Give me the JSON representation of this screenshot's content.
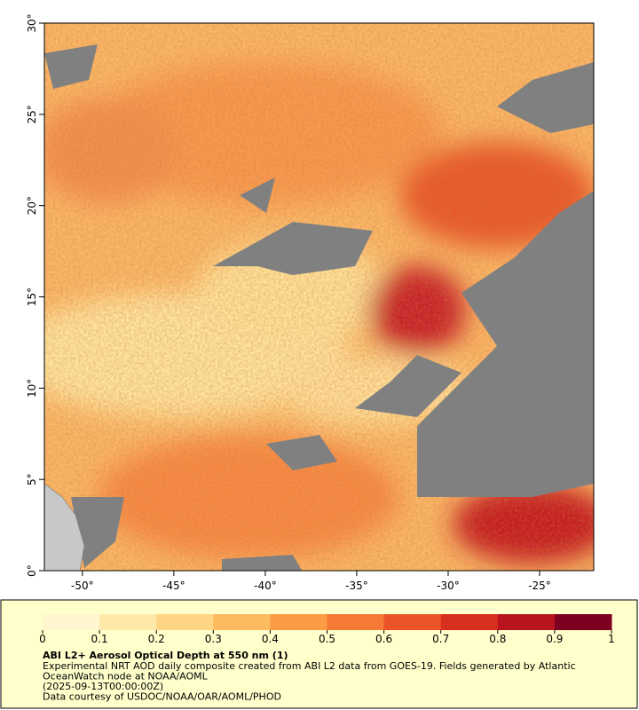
{
  "map": {
    "xlim": [
      -52.08,
      -22.04
    ],
    "ylim": [
      0,
      30
    ],
    "xticks": [
      {
        "value": -50,
        "label": "-50°"
      },
      {
        "value": -45,
        "label": "-45°"
      },
      {
        "value": -40,
        "label": "-40°"
      },
      {
        "value": -35,
        "label": "-35°"
      },
      {
        "value": -30,
        "label": "-30°"
      },
      {
        "value": -25,
        "label": "-25°"
      }
    ],
    "yticks": [
      {
        "value": 0,
        "label": "0°"
      },
      {
        "value": 5,
        "label": "5°"
      },
      {
        "value": 10,
        "label": "10°"
      },
      {
        "value": 15,
        "label": "15°"
      },
      {
        "value": 20,
        "label": "20°"
      },
      {
        "value": 25,
        "label": "25°"
      },
      {
        "value": 30,
        "label": "30°"
      }
    ]
  },
  "colorbar": {
    "lim": [
      0,
      1
    ],
    "ticks": [
      0,
      0.1,
      0.2,
      0.3,
      0.4,
      0.5,
      0.6,
      0.7,
      0.8,
      0.9,
      1
    ],
    "colors": [
      "#fff6d0",
      "#ffe9a8",
      "#ffd585",
      "#fdbb5f",
      "#fb9c45",
      "#f57a35",
      "#ea5428",
      "#d8301e",
      "#b8141e",
      "#7d0020"
    ]
  },
  "caption": {
    "title": "ABI L2+ Aerosol Optical Depth at 550 nm (1)",
    "lines": [
      "Experimental NRT AOD daily composite created from ABI L2 data from GOES-19. Fields generated by Atlantic",
      "OceanWatch node at NOAA/AOML",
      "(2025-09-13T00:00:00Z)",
      "Data courtesy of USDOC/NOAA/OAR/AOML/PHOD"
    ]
  }
}
